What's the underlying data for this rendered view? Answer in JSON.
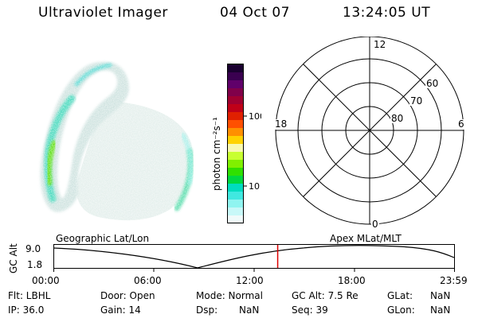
{
  "header": {
    "title": "Ultraviolet Imager",
    "date": "04 Oct 07",
    "time": "13:24:05 UT"
  },
  "colorbar": {
    "unit_label": "photon cm⁻²s⁻¹",
    "tick_labels": [
      "100",
      "10"
    ],
    "colors": [
      "#1a0030",
      "#3a0050",
      "#60006a",
      "#80004a",
      "#a00030",
      "#c00018",
      "#e02000",
      "#ff5000",
      "#ff9000",
      "#ffd200",
      "#f8f8b0",
      "#c8ff30",
      "#80f000",
      "#30e000",
      "#00d840",
      "#00dcc0",
      "#40e8e0",
      "#90f4f0",
      "#c8f8f8",
      "#f0fafa"
    ]
  },
  "polar_plot": {
    "mlt_labels": {
      "top": "12",
      "bottom": "0",
      "left": "18",
      "right": "6"
    },
    "lat_labels": [
      "60",
      "70",
      "80"
    ]
  },
  "timeline": {
    "left_label": "Geographic Lat/Lon",
    "right_label": "Apex  MLat/MLT",
    "y_axis_title": "GC Alt",
    "y_ticks": [
      "9.0",
      "1.8"
    ],
    "x_ticks": [
      "00:00",
      "06:00",
      "12:00",
      "18:00",
      "23:59"
    ],
    "current_time_marker": "13:24:05",
    "marker_color": "#dd0000"
  },
  "status": {
    "filter": "Flt: LBHL",
    "door": "Door: Open",
    "mode": "Mode: Normal",
    "gc_alt": "GC Alt: 7.5 Re",
    "glat_label": "GLat:",
    "glat_value": "NaN",
    "ip": "IP: 36.0",
    "gain": "Gain: 14",
    "dsp_label": "Dsp:",
    "dsp_value": "NaN",
    "seq": "Seq: 39",
    "glon_label": "GLon:",
    "glon_value": "NaN"
  }
}
